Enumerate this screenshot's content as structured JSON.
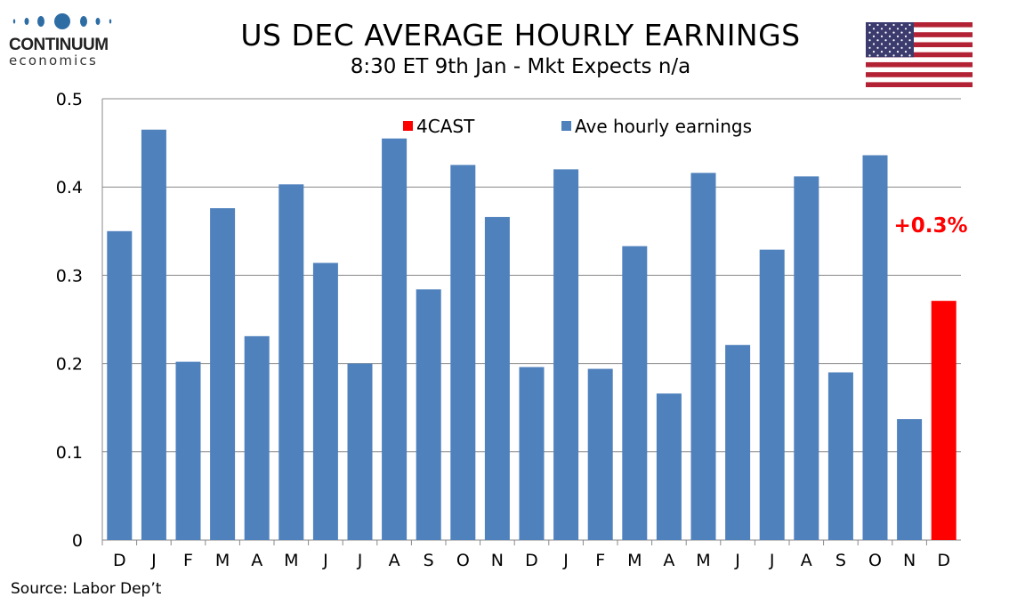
{
  "logo": {
    "name": "CONTINUUM",
    "sub": "economics"
  },
  "header": {
    "title": "US DEC AVERAGE HOURLY EARNINGS",
    "subtitle": "8:30 ET 9th Jan - Mkt Expects n/a"
  },
  "flag_icon": "us-flag",
  "source": "Source: Labor Dep’t",
  "chart_data": {
    "type": "bar",
    "title": "US DEC AVERAGE HOURLY EARNINGS",
    "subtitle": "8:30 ET 9th Jan - Mkt Expects n/a",
    "categories": [
      "D",
      "J",
      "F",
      "M",
      "A",
      "M",
      "J",
      "J",
      "A",
      "S",
      "O",
      "N",
      "D",
      "J",
      "F",
      "M",
      "A",
      "M",
      "J",
      "J",
      "A",
      "S",
      "O",
      "N",
      "D"
    ],
    "series": [
      {
        "name": "Ave hourly earnings",
        "color": "#4f81bd",
        "values": [
          0.35,
          0.465,
          0.202,
          0.376,
          0.231,
          0.403,
          0.314,
          0.2,
          0.455,
          0.284,
          0.425,
          0.366,
          0.196,
          0.42,
          0.194,
          0.333,
          0.166,
          0.416,
          0.221,
          0.329,
          0.412,
          0.19,
          0.436,
          0.137,
          null
        ]
      },
      {
        "name": "4CAST",
        "color": "#ff0000",
        "values": [
          null,
          null,
          null,
          null,
          null,
          null,
          null,
          null,
          null,
          null,
          null,
          null,
          null,
          null,
          null,
          null,
          null,
          null,
          null,
          null,
          null,
          null,
          null,
          null,
          0.271
        ]
      }
    ],
    "annotation": "+0.3%",
    "ylim": [
      0,
      0.5
    ],
    "yticks": [
      "0",
      "0.1",
      "0.2",
      "0.3",
      "0.4",
      "0.5"
    ],
    "grid": true,
    "legend": "top"
  }
}
